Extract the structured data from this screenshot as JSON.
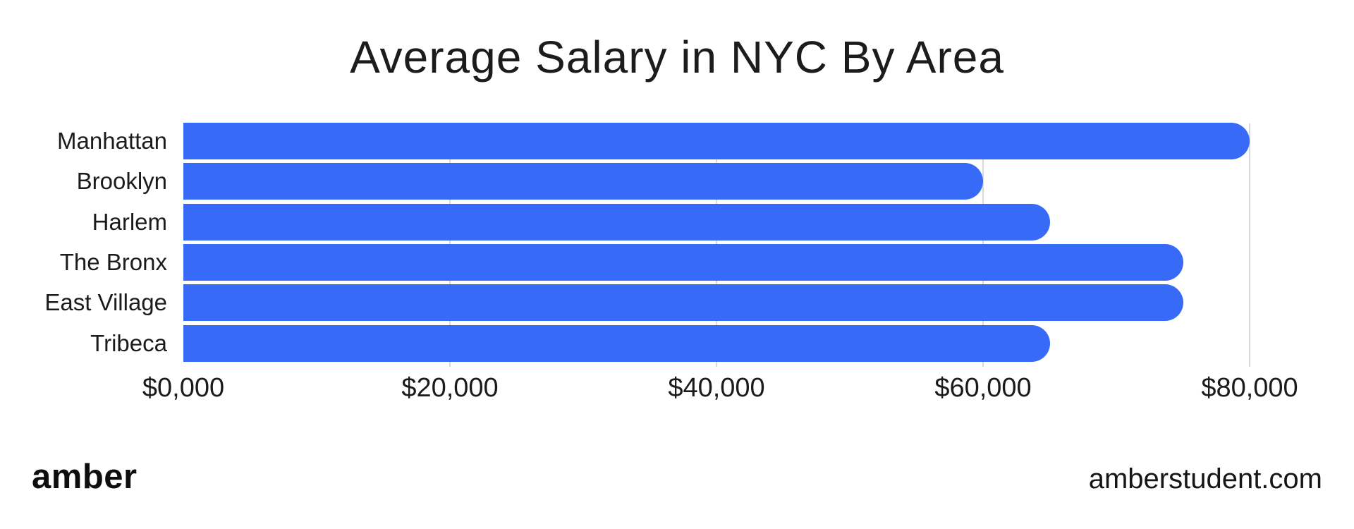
{
  "title": "Average Salary in NYC By Area",
  "chart_data": {
    "type": "bar",
    "orientation": "horizontal",
    "title": "Average Salary in NYC By Area",
    "categories": [
      "Manhattan",
      "Brooklyn",
      "Harlem",
      "The Bronx",
      "East Village",
      "Tribeca"
    ],
    "values": [
      80000,
      60000,
      65000,
      75000,
      75000,
      65000
    ],
    "xlabel": "",
    "ylabel": "",
    "xlim": [
      0,
      80000
    ],
    "xtick_values": [
      0,
      20000,
      40000,
      60000,
      80000
    ],
    "xtick_labels": [
      "$0,000",
      "$20,000",
      "$40,000",
      "$60,000",
      "$80,000"
    ],
    "grid": true,
    "legend": false,
    "bar_color": "#376bf7"
  },
  "footer": {
    "brand": "amber",
    "website": "amberstudent.com"
  },
  "colors": {
    "bar": "#376bf7",
    "gridline": "#d9d9d9",
    "text": "#1b1b1b",
    "background": "#ffffff"
  }
}
